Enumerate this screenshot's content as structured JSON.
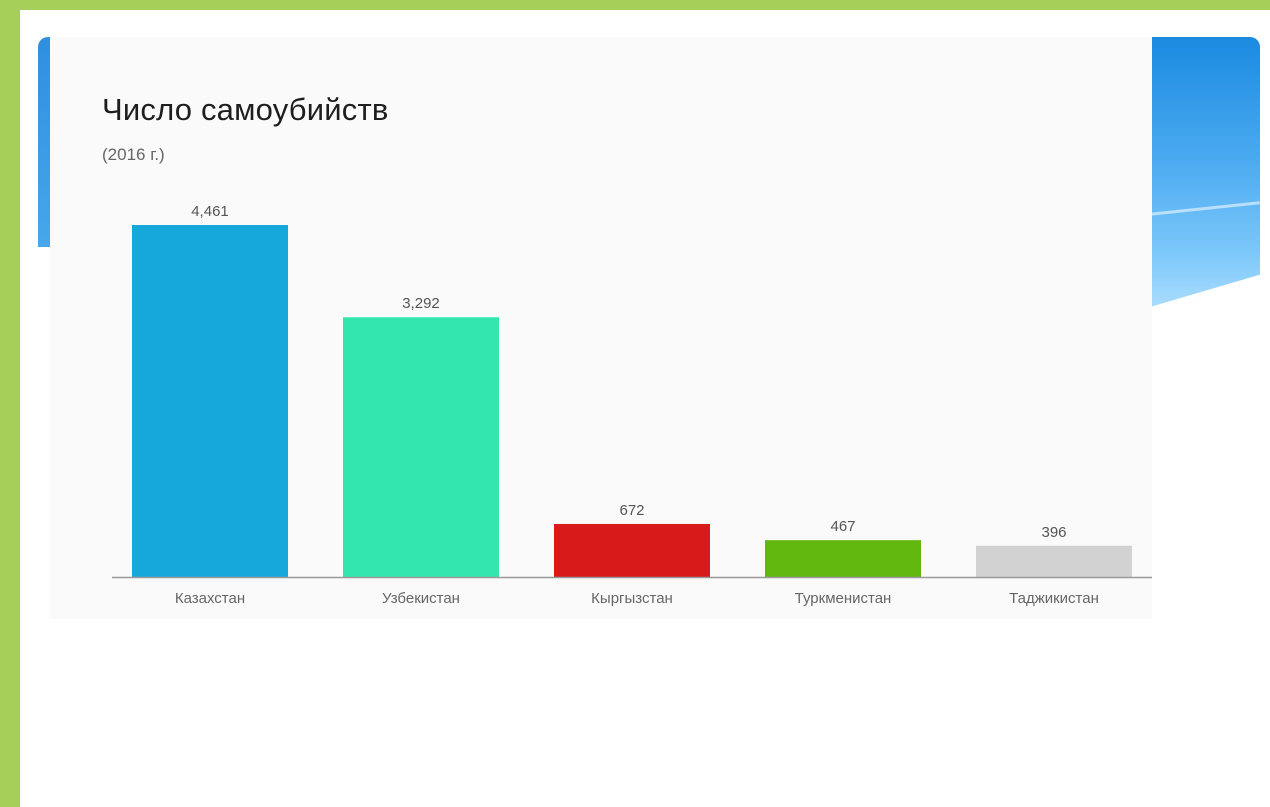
{
  "chart_data": {
    "type": "bar",
    "title": "Число самоубийств",
    "subtitle": "(2016 г.)",
    "xlabel": "",
    "ylabel": "",
    "categories": [
      "Казахстан",
      "Узбекистан",
      "Кыргызстан",
      "Туркменистан",
      "Таджикистан"
    ],
    "values": [
      4461,
      3292,
      672,
      467,
      396
    ],
    "value_labels": [
      "4,461",
      "3,292",
      "672",
      "467",
      "396"
    ],
    "colors": [
      "#17a8db",
      "#32e6ad",
      "#d81a1a",
      "#62b80f",
      "#d2d2d2"
    ],
    "ylim": [
      0,
      4461
    ],
    "grid": false,
    "legend": "none"
  }
}
